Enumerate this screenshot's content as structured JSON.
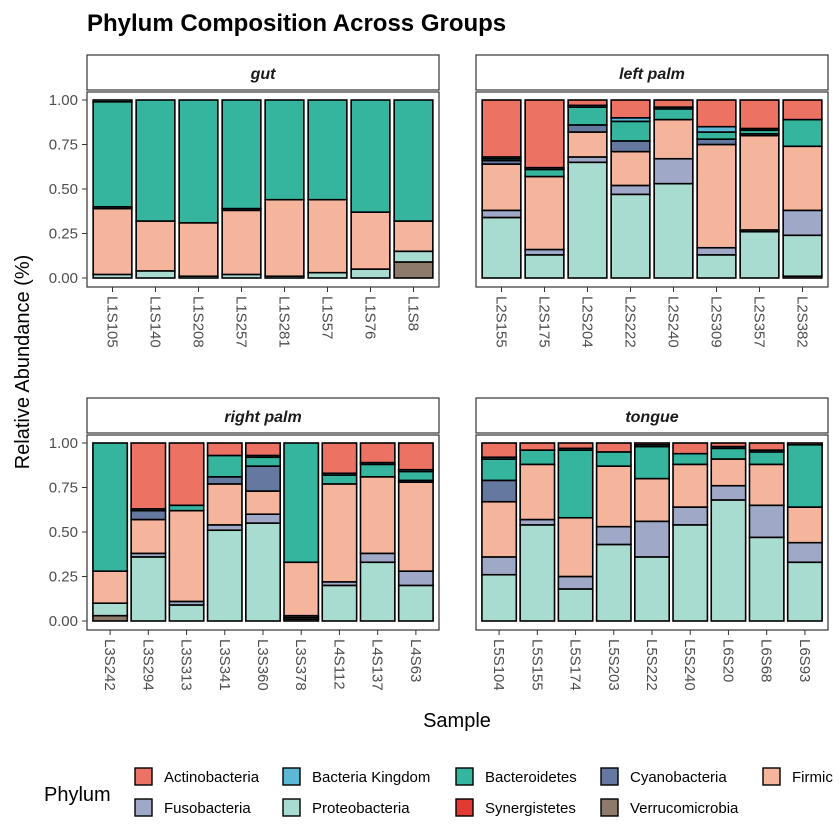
{
  "chart_data": {
    "type": "bar",
    "stacked": true,
    "faceted": true,
    "title": "Phylum Composition Across Groups",
    "xlabel": "Sample",
    "ylabel": "Relative Abundance (%)",
    "ylim": [
      0,
      1
    ],
    "yticks": [
      "0.00",
      "0.25",
      "0.50",
      "0.75",
      "1.00"
    ],
    "legend": {
      "title": "Phylum",
      "position": "bottom"
    },
    "stack_order_bottom_to_top": [
      "Verrucomicrobia",
      "Synergistetes",
      "Proteobacteria",
      "Fusobacteria",
      "Firmicutes",
      "Cyanobacteria",
      "Bacteroidetes",
      "Bacteria Kingdom",
      "Actinobacteria"
    ],
    "phyla": [
      {
        "name": "Actinobacteria",
        "color": "#EC7263"
      },
      {
        "name": "Bacteria Kingdom",
        "color": "#5DB8D6"
      },
      {
        "name": "Bacteroidetes",
        "color": "#35B59E"
      },
      {
        "name": "Cyanobacteria",
        "color": "#6478A0"
      },
      {
        "name": "Firmicutes",
        "color": "#F5B49C"
      },
      {
        "name": "Fusobacteria",
        "color": "#A0A8C8"
      },
      {
        "name": "Proteobacteria",
        "color": "#A8DCD0"
      },
      {
        "name": "Synergistetes",
        "color": "#E03A32"
      },
      {
        "name": "Verrucomicrobia",
        "color": "#8E7A6A"
      }
    ],
    "legend_labels_visible": [
      "Actinobacteria",
      "Bacteria Kingdom",
      "Bacteroidetes",
      "Cyanobacteria",
      "Firmic",
      "Fusobacteria",
      "Proteobacteria",
      "Synergistetes",
      "Verrucomicrobia"
    ],
    "facets": [
      {
        "name": "gut",
        "samples": [
          {
            "id": "L1S105",
            "values": {
              "Verrucomicrobia": 0.0,
              "Synergistetes": 0.0,
              "Proteobacteria": 0.02,
              "Fusobacteria": 0.0,
              "Firmicutes": 0.37,
              "Cyanobacteria": 0.01,
              "Bacteroidetes": 0.59,
              "Bacteria Kingdom": 0.01,
              "Actinobacteria": 0.0
            }
          },
          {
            "id": "L1S140",
            "values": {
              "Verrucomicrobia": 0.0,
              "Synergistetes": 0.0,
              "Proteobacteria": 0.04,
              "Fusobacteria": 0.0,
              "Firmicutes": 0.28,
              "Cyanobacteria": 0.0,
              "Bacteroidetes": 0.68,
              "Bacteria Kingdom": 0.0,
              "Actinobacteria": 0.0
            }
          },
          {
            "id": "L1S208",
            "values": {
              "Verrucomicrobia": 0.0,
              "Synergistetes": 0.0,
              "Proteobacteria": 0.01,
              "Fusobacteria": 0.0,
              "Firmicutes": 0.3,
              "Cyanobacteria": 0.0,
              "Bacteroidetes": 0.69,
              "Bacteria Kingdom": 0.0,
              "Actinobacteria": 0.0
            }
          },
          {
            "id": "L1S257",
            "values": {
              "Verrucomicrobia": 0.0,
              "Synergistetes": 0.0,
              "Proteobacteria": 0.02,
              "Fusobacteria": 0.0,
              "Firmicutes": 0.36,
              "Cyanobacteria": 0.01,
              "Bacteroidetes": 0.61,
              "Bacteria Kingdom": 0.0,
              "Actinobacteria": 0.0
            }
          },
          {
            "id": "L1S281",
            "values": {
              "Verrucomicrobia": 0.0,
              "Synergistetes": 0.0,
              "Proteobacteria": 0.01,
              "Fusobacteria": 0.0,
              "Firmicutes": 0.43,
              "Cyanobacteria": 0.0,
              "Bacteroidetes": 0.56,
              "Bacteria Kingdom": 0.0,
              "Actinobacteria": 0.0
            }
          },
          {
            "id": "L1S57",
            "values": {
              "Verrucomicrobia": 0.0,
              "Synergistetes": 0.0,
              "Proteobacteria": 0.03,
              "Fusobacteria": 0.0,
              "Firmicutes": 0.41,
              "Cyanobacteria": 0.0,
              "Bacteroidetes": 0.56,
              "Bacteria Kingdom": 0.0,
              "Actinobacteria": 0.0
            }
          },
          {
            "id": "L1S76",
            "values": {
              "Verrucomicrobia": 0.0,
              "Synergistetes": 0.0,
              "Proteobacteria": 0.05,
              "Fusobacteria": 0.0,
              "Firmicutes": 0.32,
              "Cyanobacteria": 0.0,
              "Bacteroidetes": 0.63,
              "Bacteria Kingdom": 0.0,
              "Actinobacteria": 0.0
            }
          },
          {
            "id": "L1S8",
            "values": {
              "Verrucomicrobia": 0.09,
              "Synergistetes": 0.0,
              "Proteobacteria": 0.06,
              "Fusobacteria": 0.0,
              "Firmicutes": 0.17,
              "Cyanobacteria": 0.0,
              "Bacteroidetes": 0.68,
              "Bacteria Kingdom": 0.0,
              "Actinobacteria": 0.0
            }
          }
        ]
      },
      {
        "name": "left palm",
        "samples": [
          {
            "id": "L2S155",
            "values": {
              "Verrucomicrobia": 0.0,
              "Synergistetes": 0.0,
              "Proteobacteria": 0.34,
              "Fusobacteria": 0.04,
              "Firmicutes": 0.26,
              "Cyanobacteria": 0.02,
              "Bacteroidetes": 0.01,
              "Bacteria Kingdom": 0.01,
              "Actinobacteria": 0.32
            }
          },
          {
            "id": "L2S175",
            "values": {
              "Verrucomicrobia": 0.0,
              "Synergistetes": 0.0,
              "Proteobacteria": 0.13,
              "Fusobacteria": 0.03,
              "Firmicutes": 0.41,
              "Cyanobacteria": 0.0,
              "Bacteroidetes": 0.04,
              "Bacteria Kingdom": 0.01,
              "Actinobacteria": 0.38
            }
          },
          {
            "id": "L2S204",
            "values": {
              "Verrucomicrobia": 0.0,
              "Synergistetes": 0.0,
              "Proteobacteria": 0.65,
              "Fusobacteria": 0.03,
              "Firmicutes": 0.14,
              "Cyanobacteria": 0.04,
              "Bacteroidetes": 0.1,
              "Bacteria Kingdom": 0.01,
              "Actinobacteria": 0.03
            }
          },
          {
            "id": "L2S222",
            "values": {
              "Verrucomicrobia": 0.0,
              "Synergistetes": 0.0,
              "Proteobacteria": 0.47,
              "Fusobacteria": 0.05,
              "Firmicutes": 0.19,
              "Cyanobacteria": 0.06,
              "Bacteroidetes": 0.11,
              "Bacteria Kingdom": 0.02,
              "Actinobacteria": 0.1
            }
          },
          {
            "id": "L2S240",
            "values": {
              "Verrucomicrobia": 0.0,
              "Synergistetes": 0.0,
              "Proteobacteria": 0.53,
              "Fusobacteria": 0.14,
              "Firmicutes": 0.22,
              "Cyanobacteria": 0.0,
              "Bacteroidetes": 0.06,
              "Bacteria Kingdom": 0.01,
              "Actinobacteria": 0.04
            }
          },
          {
            "id": "L2S309",
            "values": {
              "Verrucomicrobia": 0.0,
              "Synergistetes": 0.0,
              "Proteobacteria": 0.13,
              "Fusobacteria": 0.04,
              "Firmicutes": 0.58,
              "Cyanobacteria": 0.03,
              "Bacteroidetes": 0.04,
              "Bacteria Kingdom": 0.03,
              "Actinobacteria": 0.15
            }
          },
          {
            "id": "L2S357",
            "values": {
              "Verrucomicrobia": 0.0,
              "Synergistetes": 0.0,
              "Proteobacteria": 0.26,
              "Fusobacteria": 0.01,
              "Firmicutes": 0.53,
              "Cyanobacteria": 0.01,
              "Bacteroidetes": 0.02,
              "Bacteria Kingdom": 0.01,
              "Actinobacteria": 0.16
            }
          },
          {
            "id": "L2S382",
            "values": {
              "Verrucomicrobia": 0.01,
              "Synergistetes": 0.0,
              "Proteobacteria": 0.23,
              "Fusobacteria": 0.14,
              "Firmicutes": 0.36,
              "Cyanobacteria": 0.0,
              "Bacteroidetes": 0.15,
              "Bacteria Kingdom": 0.0,
              "Actinobacteria": 0.11
            }
          }
        ]
      },
      {
        "name": "right palm",
        "samples": [
          {
            "id": "L3S242",
            "values": {
              "Verrucomicrobia": 0.03,
              "Synergistetes": 0.0,
              "Proteobacteria": 0.07,
              "Fusobacteria": 0.0,
              "Firmicutes": 0.18,
              "Cyanobacteria": 0.0,
              "Bacteroidetes": 0.72,
              "Bacteria Kingdom": 0.0,
              "Actinobacteria": 0.0
            }
          },
          {
            "id": "L3S294",
            "values": {
              "Verrucomicrobia": 0.0,
              "Synergistetes": 0.0,
              "Proteobacteria": 0.36,
              "Fusobacteria": 0.02,
              "Firmicutes": 0.19,
              "Cyanobacteria": 0.05,
              "Bacteroidetes": 0.01,
              "Bacteria Kingdom": 0.0,
              "Actinobacteria": 0.37
            }
          },
          {
            "id": "L3S313",
            "values": {
              "Verrucomicrobia": 0.0,
              "Synergistetes": 0.0,
              "Proteobacteria": 0.09,
              "Fusobacteria": 0.02,
              "Firmicutes": 0.51,
              "Cyanobacteria": 0.0,
              "Bacteroidetes": 0.03,
              "Bacteria Kingdom": 0.0,
              "Actinobacteria": 0.35
            }
          },
          {
            "id": "L3S341",
            "values": {
              "Verrucomicrobia": 0.0,
              "Synergistetes": 0.0,
              "Proteobacteria": 0.51,
              "Fusobacteria": 0.03,
              "Firmicutes": 0.23,
              "Cyanobacteria": 0.04,
              "Bacteroidetes": 0.12,
              "Bacteria Kingdom": 0.0,
              "Actinobacteria": 0.07
            }
          },
          {
            "id": "L3S360",
            "values": {
              "Verrucomicrobia": 0.0,
              "Synergistetes": 0.0,
              "Proteobacteria": 0.55,
              "Fusobacteria": 0.05,
              "Firmicutes": 0.13,
              "Cyanobacteria": 0.14,
              "Bacteroidetes": 0.05,
              "Bacteria Kingdom": 0.01,
              "Actinobacteria": 0.07
            }
          },
          {
            "id": "L3S378",
            "values": {
              "Verrucomicrobia": 0.01,
              "Synergistetes": 0.0,
              "Proteobacteria": 0.01,
              "Fusobacteria": 0.01,
              "Firmicutes": 0.3,
              "Cyanobacteria": 0.0,
              "Bacteroidetes": 0.67,
              "Bacteria Kingdom": 0.0,
              "Actinobacteria": 0.0
            }
          },
          {
            "id": "L4S112",
            "values": {
              "Verrucomicrobia": 0.0,
              "Synergistetes": 0.0,
              "Proteobacteria": 0.2,
              "Fusobacteria": 0.02,
              "Firmicutes": 0.55,
              "Cyanobacteria": 0.0,
              "Bacteroidetes": 0.05,
              "Bacteria Kingdom": 0.01,
              "Actinobacteria": 0.17
            }
          },
          {
            "id": "L4S137",
            "values": {
              "Verrucomicrobia": 0.0,
              "Synergistetes": 0.0,
              "Proteobacteria": 0.33,
              "Fusobacteria": 0.05,
              "Firmicutes": 0.43,
              "Cyanobacteria": 0.0,
              "Bacteroidetes": 0.07,
              "Bacteria Kingdom": 0.01,
              "Actinobacteria": 0.11
            }
          },
          {
            "id": "L4S63",
            "values": {
              "Verrucomicrobia": 0.0,
              "Synergistetes": 0.0,
              "Proteobacteria": 0.2,
              "Fusobacteria": 0.08,
              "Firmicutes": 0.5,
              "Cyanobacteria": 0.01,
              "Bacteroidetes": 0.05,
              "Bacteria Kingdom": 0.01,
              "Actinobacteria": 0.15
            }
          }
        ]
      },
      {
        "name": "tongue",
        "samples": [
          {
            "id": "L5S104",
            "values": {
              "Verrucomicrobia": 0.0,
              "Synergistetes": 0.0,
              "Proteobacteria": 0.26,
              "Fusobacteria": 0.1,
              "Firmicutes": 0.31,
              "Cyanobacteria": 0.12,
              "Bacteroidetes": 0.12,
              "Bacteria Kingdom": 0.01,
              "Actinobacteria": 0.08
            }
          },
          {
            "id": "L5S155",
            "values": {
              "Verrucomicrobia": 0.0,
              "Synergistetes": 0.0,
              "Proteobacteria": 0.54,
              "Fusobacteria": 0.03,
              "Firmicutes": 0.31,
              "Cyanobacteria": 0.0,
              "Bacteroidetes": 0.08,
              "Bacteria Kingdom": 0.0,
              "Actinobacteria": 0.04
            }
          },
          {
            "id": "L5S174",
            "values": {
              "Verrucomicrobia": 0.0,
              "Synergistetes": 0.0,
              "Proteobacteria": 0.18,
              "Fusobacteria": 0.07,
              "Firmicutes": 0.33,
              "Cyanobacteria": 0.0,
              "Bacteroidetes": 0.38,
              "Bacteria Kingdom": 0.01,
              "Actinobacteria": 0.03
            }
          },
          {
            "id": "L5S203",
            "values": {
              "Verrucomicrobia": 0.0,
              "Synergistetes": 0.0,
              "Proteobacteria": 0.43,
              "Fusobacteria": 0.1,
              "Firmicutes": 0.34,
              "Cyanobacteria": 0.0,
              "Bacteroidetes": 0.08,
              "Bacteria Kingdom": 0.0,
              "Actinobacteria": 0.05
            }
          },
          {
            "id": "L5S222",
            "values": {
              "Verrucomicrobia": 0.0,
              "Synergistetes": 0.0,
              "Proteobacteria": 0.36,
              "Fusobacteria": 0.2,
              "Firmicutes": 0.24,
              "Cyanobacteria": 0.0,
              "Bacteroidetes": 0.18,
              "Bacteria Kingdom": 0.01,
              "Actinobacteria": 0.01
            }
          },
          {
            "id": "L5S240",
            "values": {
              "Verrucomicrobia": 0.0,
              "Synergistetes": 0.0,
              "Proteobacteria": 0.54,
              "Fusobacteria": 0.1,
              "Firmicutes": 0.24,
              "Cyanobacteria": 0.0,
              "Bacteroidetes": 0.06,
              "Bacteria Kingdom": 0.0,
              "Actinobacteria": 0.06
            }
          },
          {
            "id": "L6S20",
            "values": {
              "Verrucomicrobia": 0.0,
              "Synergistetes": 0.0,
              "Proteobacteria": 0.68,
              "Fusobacteria": 0.08,
              "Firmicutes": 0.15,
              "Cyanobacteria": 0.0,
              "Bacteroidetes": 0.06,
              "Bacteria Kingdom": 0.01,
              "Actinobacteria": 0.02
            }
          },
          {
            "id": "L6S68",
            "values": {
              "Verrucomicrobia": 0.0,
              "Synergistetes": 0.0,
              "Proteobacteria": 0.47,
              "Fusobacteria": 0.18,
              "Firmicutes": 0.23,
              "Cyanobacteria": 0.0,
              "Bacteroidetes": 0.07,
              "Bacteria Kingdom": 0.01,
              "Actinobacteria": 0.04
            }
          },
          {
            "id": "L6S93",
            "values": {
              "Verrucomicrobia": 0.0,
              "Synergistetes": 0.0,
              "Proteobacteria": 0.33,
              "Fusobacteria": 0.11,
              "Firmicutes": 0.2,
              "Cyanobacteria": 0.0,
              "Bacteroidetes": 0.35,
              "Bacteria Kingdom": 0.0,
              "Actinobacteria": 0.01
            }
          }
        ]
      }
    ]
  }
}
